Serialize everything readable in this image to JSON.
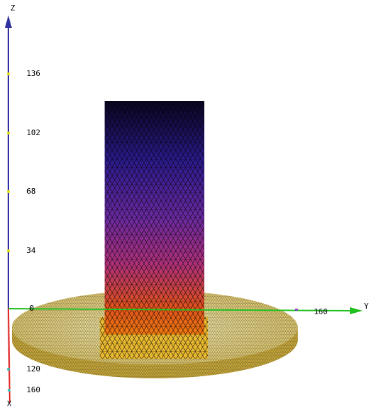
{
  "axes": {
    "z": {
      "label": "Z",
      "ticks": [
        "136",
        "102",
        "68",
        "34",
        "0"
      ]
    },
    "y": {
      "label": "Y",
      "ticks": [
        "160"
      ]
    },
    "x": {
      "label": "X",
      "ticks": [
        "120",
        "160"
      ]
    }
  }
}
